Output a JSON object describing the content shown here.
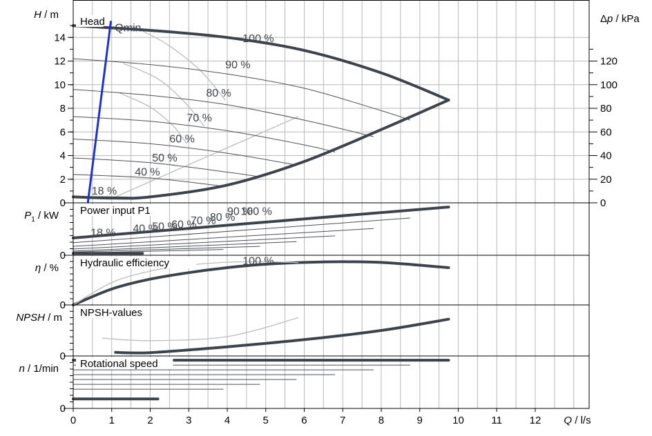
{
  "chart_data": {
    "type": "line",
    "x_axis": {
      "label_var": "Q",
      "label_unit": "l/s",
      "min": 0,
      "max": 13.4,
      "ticks": [
        0,
        1,
        2,
        3,
        4,
        5,
        6,
        7,
        8,
        9,
        10,
        11,
        12
      ]
    },
    "panels": [
      {
        "id": "head",
        "title": "Head",
        "ylabel_var": "H",
        "ylabel_unit": "m",
        "ymin": 0,
        "ymax": 16,
        "ticks": [
          0,
          2,
          4,
          6,
          8,
          10,
          12,
          14
        ],
        "right_axis": {
          "label_var": "Δp",
          "label_unit": "kPa",
          "per_unit": 10,
          "ticks": [
            0,
            20,
            40,
            60,
            80,
            100,
            120
          ]
        },
        "series": [
          {
            "name": "100 %",
            "style": "thick",
            "x": [
              0,
              2,
              4,
              6,
              8,
              9.75
            ],
            "y": [
              15.0,
              14.6,
              14.0,
              12.9,
              11.0,
              8.7
            ]
          },
          {
            "name": "90 %",
            "style": "thin",
            "x": [
              0,
              2,
              4,
              6,
              8,
              8.75
            ],
            "y": [
              12.2,
              11.7,
              10.9,
              9.7,
              7.8,
              7.0
            ]
          },
          {
            "name": "80 %",
            "style": "thin",
            "x": [
              0,
              2,
              4,
              6,
              7.8
            ],
            "y": [
              9.6,
              9.1,
              8.3,
              7.0,
              5.6
            ]
          },
          {
            "name": "70 %",
            "style": "thin",
            "x": [
              0,
              2,
              4,
              6,
              6.8
            ],
            "y": [
              7.3,
              6.9,
              6.1,
              4.9,
              4.3
            ]
          },
          {
            "name": "60 %",
            "style": "thin",
            "x": [
              0,
              2,
              4,
              5.8
            ],
            "y": [
              5.4,
              5.0,
              4.2,
              3.2
            ]
          },
          {
            "name": "50 %",
            "style": "thin",
            "x": [
              0,
              2,
              4,
              4.85
            ],
            "y": [
              3.8,
              3.4,
              2.6,
              2.2
            ]
          },
          {
            "name": "40 %",
            "style": "thin",
            "x": [
              0,
              2,
              3.9
            ],
            "y": [
              2.4,
              2.1,
              1.4
            ]
          },
          {
            "name": "18 %",
            "style": "thin",
            "x": [
              0,
              1.2,
              1.8
            ],
            "y": [
              0.55,
              0.5,
              0.45
            ]
          },
          {
            "name": "min",
            "style": "thick",
            "x": [
              0,
              1,
              2,
              4,
              6,
              8,
              9.75
            ],
            "y": [
              0.5,
              0.4,
              0.5,
              1.5,
              3.5,
              6.2,
              8.7
            ]
          },
          {
            "name": "Qmin",
            "style": "blue",
            "x": [
              0.38,
              0.98
            ],
            "y": [
              0,
              15.4
            ]
          }
        ],
        "iso": [
          {
            "x": [
              1.5,
              2.4,
              3.3,
              3.95
            ],
            "y": [
              15.0,
              13.5,
              11.2,
              8.7
            ]
          },
          {
            "x": [
              1.3,
              2.2,
              2.9,
              3.4
            ],
            "y": [
              11.8,
              10.5,
              8.5,
              6.5
            ]
          },
          {
            "x": [
              1.2,
              2.0,
              2.6,
              2.95
            ],
            "y": [
              9.3,
              8.1,
              6.5,
              5.0
            ]
          }
        ],
        "ref_line": {
          "x": [
            0.95,
            5.85
          ],
          "y": [
            0.3,
            7.3
          ]
        },
        "labels": [
          {
            "text": "100 %",
            "x": 4.4,
            "y": 13.6
          },
          {
            "text": "90 %",
            "x": 3.95,
            "y": 11.4
          },
          {
            "text": "80 %",
            "x": 3.45,
            "y": 9.0
          },
          {
            "text": "70 %",
            "x": 2.95,
            "y": 6.9
          },
          {
            "text": "60 %",
            "x": 2.5,
            "y": 5.1
          },
          {
            "text": "50 %",
            "x": 2.05,
            "y": 3.5
          },
          {
            "text": "40 %",
            "x": 1.6,
            "y": 2.3
          },
          {
            "text": "18 %",
            "x": 0.48,
            "y": 0.7
          },
          {
            "text": "Qmin",
            "x": 1.08,
            "y": 14.5
          }
        ]
      },
      {
        "id": "power",
        "title": "Power input P1",
        "ylabel_var": "P",
        "ylabel_sub": "1",
        "ylabel_unit": "kW",
        "ymin": 0,
        "ymax": 1.0,
        "ticks": [
          0
        ],
        "series": [
          {
            "name": "100 %",
            "style": "thick",
            "x": [
              0,
              9.75
            ],
            "y": [
              0.33,
              0.92
            ]
          },
          {
            "name": "90 %",
            "style": "thin",
            "x": [
              0,
              8.75
            ],
            "y": [
              0.24,
              0.71
            ]
          },
          {
            "name": "80 %",
            "style": "thin",
            "x": [
              0,
              7.8
            ],
            "y": [
              0.17,
              0.51
            ]
          },
          {
            "name": "70 %",
            "style": "thin",
            "x": [
              0,
              6.8
            ],
            "y": [
              0.12,
              0.37
            ]
          },
          {
            "name": "60 %",
            "style": "thin",
            "x": [
              0,
              5.8
            ],
            "y": [
              0.08,
              0.26
            ]
          },
          {
            "name": "50 %",
            "style": "thin",
            "x": [
              0,
              4.85
            ],
            "y": [
              0.06,
              0.17
            ]
          },
          {
            "name": "40 %",
            "style": "thin",
            "x": [
              0,
              3.9
            ],
            "y": [
              0.04,
              0.11
            ]
          },
          {
            "name": "18 %",
            "style": "thick",
            "x": [
              0,
              1.8
            ],
            "y": [
              0.035,
              0.035
            ]
          }
        ],
        "labels": [
          {
            "text": "100 %",
            "x": 4.35,
            "y": 0.77
          },
          {
            "text": "90 %",
            "x": 4.0,
            "y": 0.77
          },
          {
            "text": "80 %",
            "x": 3.55,
            "y": 0.66
          },
          {
            "text": "70 %",
            "x": 3.05,
            "y": 0.59
          },
          {
            "text": "60 %",
            "x": 2.55,
            "y": 0.52
          },
          {
            "text": "50 %",
            "x": 2.05,
            "y": 0.48
          },
          {
            "text": "40 %",
            "x": 1.55,
            "y": 0.44
          },
          {
            "text": "18 %",
            "x": 0.45,
            "y": 0.36
          }
        ]
      },
      {
        "id": "efficiency",
        "title": "Hydraulic efficiency",
        "ylabel_var": "η",
        "ylabel_unit": "%",
        "ymin": 0,
        "ymax": 100,
        "ticks": [
          0
        ],
        "series": [
          {
            "name": "100 %",
            "style": "thick",
            "x": [
              0,
              1,
              2,
              3,
              4,
              5,
              6,
              7,
              8,
              9,
              9.75
            ],
            "y": [
              0,
              32,
              52,
              65,
              75,
              82,
              85.5,
              87,
              85.5,
              80,
              75
            ]
          },
          {
            "name": "18 %",
            "style": "grey",
            "x": [
              0,
              1,
              2,
              3,
              4,
              5,
              5.85
            ],
            "y": [
              0,
              45,
              68,
              80,
              86,
              87,
              85
            ]
          }
        ],
        "labels": [
          {
            "text": "100 %",
            "x": 4.4,
            "y": 81
          }
        ]
      },
      {
        "id": "npsh",
        "title": "NPSH-values",
        "ylabel_var": "NPSH",
        "ylabel_unit": "m",
        "ymin": 0,
        "ymax": 10,
        "ticks": [
          0
        ],
        "series": [
          {
            "name": "100 %",
            "style": "thick",
            "x": [
              1.1,
              2,
              4,
              6,
              8,
              9.75
            ],
            "y": [
              0.7,
              0.65,
              1.8,
              3.2,
              5.0,
              7.2
            ]
          },
          {
            "name": "18 %",
            "style": "grey",
            "x": [
              0.75,
              2,
              4,
              5.85
            ],
            "y": [
              3.5,
              3.0,
              3.8,
              7.5
            ]
          }
        ]
      },
      {
        "id": "speed",
        "title": "Rotational speed",
        "ylabel_var": "n",
        "ylabel_unit": "1/min",
        "ymin": 0,
        "ymax": 1000,
        "ticks": [
          0
        ],
        "series": [
          {
            "name": "100 %",
            "style": "thick",
            "x": [
              0,
              9.75
            ],
            "y": [
              920,
              920
            ]
          },
          {
            "name": "90 %",
            "style": "thin",
            "x": [
              0,
              8.75
            ],
            "y": [
              826,
              826
            ]
          },
          {
            "name": "80 %",
            "style": "thin",
            "x": [
              0,
              7.8
            ],
            "y": [
              735,
              735
            ]
          },
          {
            "name": "70 %",
            "style": "thin",
            "x": [
              0,
              6.8
            ],
            "y": [
              643,
              643
            ]
          },
          {
            "name": "60 %",
            "style": "thin",
            "x": [
              0,
              5.8
            ],
            "y": [
              551,
              551
            ]
          },
          {
            "name": "50 %",
            "style": "thin",
            "x": [
              0,
              4.85
            ],
            "y": [
              459,
              459
            ]
          },
          {
            "name": "40 %",
            "style": "thin",
            "x": [
              0,
              3.9
            ],
            "y": [
              367,
              367
            ]
          },
          {
            "name": "18 %",
            "style": "thick",
            "x": [
              0,
              2.2
            ],
            "y": [
              180,
              180
            ]
          }
        ]
      }
    ]
  }
}
